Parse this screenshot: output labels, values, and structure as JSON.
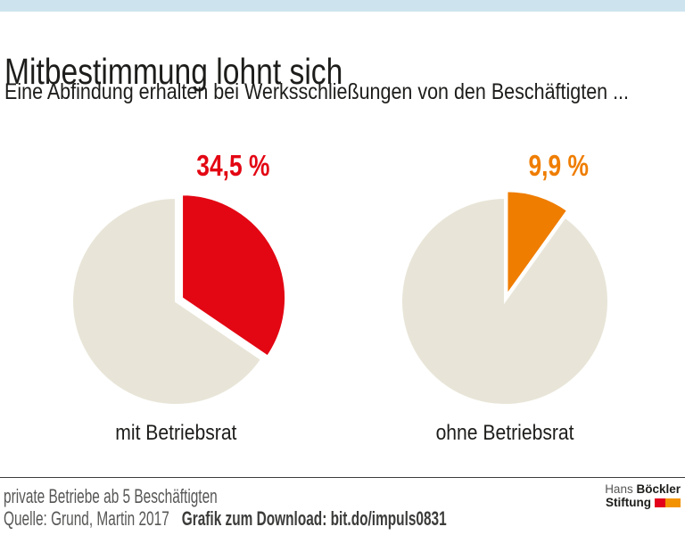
{
  "page": {
    "title": "Mitbestimmung lohnt sich",
    "subtitle": "Eine Abfindung erhalten bei Werksschließungen von den Beschäftigten ..."
  },
  "chart_data": {
    "type": "pie",
    "layout": "two exploded pies side by side, slice starts at 12 o'clock clockwise",
    "unit": "%",
    "charts": [
      {
        "category": "mit Betriebsrat",
        "value": 34.5,
        "value_label": "34,5 %",
        "slice_color": "#e30613"
      },
      {
        "category": "ohne Betriebsrat",
        "value": 9.9,
        "value_label": "9,9 %",
        "slice_color": "#ef7d00"
      }
    ],
    "rest_color": "#e8e5d8",
    "background": "#ffffff"
  },
  "footer": {
    "note": "private Betriebe ab 5 Beschäftigten",
    "source": "Quelle: Grund, Martin 2017",
    "download_label": "Grafik zum Download: bit.do/impuls0831"
  },
  "branding": {
    "name_regular": "Hans",
    "name_bold": "Böckler",
    "line2_bold": "Stiftung",
    "mark_colors": [
      "#e2001a",
      "#f39200"
    ]
  },
  "theme": {
    "top_bar_color": "#cde4ef",
    "title_color": "#1d1d1b",
    "footer_gray": "#575756",
    "divider_color": "#3c3c3b"
  }
}
